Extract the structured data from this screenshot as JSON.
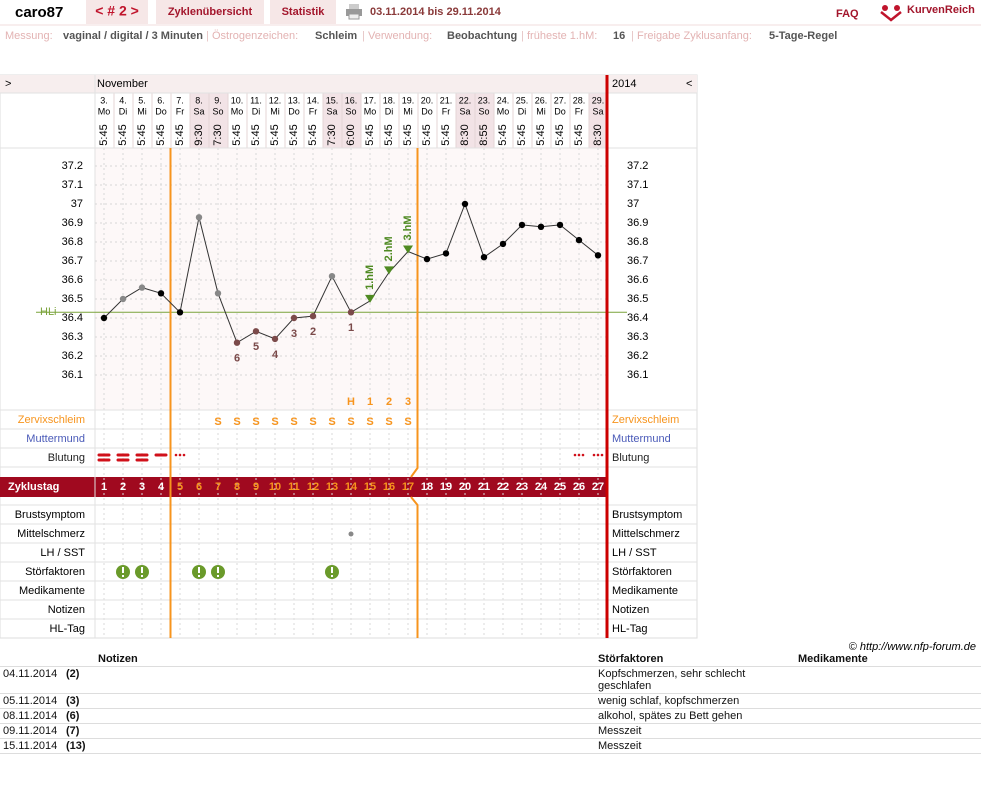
{
  "header": {
    "user": "caro87",
    "cycle_nav": "< # 2 >",
    "tabs": [
      "Zyklenübersicht",
      "Statistik"
    ],
    "period": "03.11.2014 bis 29.11.2014",
    "faq": "FAQ",
    "logo": "KurvenReich"
  },
  "info": [
    {
      "label": "Messung:",
      "value": "vaginal / digital / 3 Minuten"
    },
    {
      "label": "Östrogenzeichen:",
      "value": "Schleim"
    },
    {
      "label": "Verwendung:",
      "value": "Beobachtung"
    },
    {
      "label": "früheste 1.hM:",
      "value": "16"
    },
    {
      "label": "Freigabe Zyklusanfang:",
      "value": "5-Tage-Regel"
    }
  ],
  "chart_data": {
    "type": "line",
    "nav_left": ">",
    "nav_right": "<",
    "month": "November",
    "year": "2014",
    "dates": [
      "3.",
      "4.",
      "5.",
      "6.",
      "7.",
      "8.",
      "9.",
      "10.",
      "11.",
      "12.",
      "13.",
      "14.",
      "15.",
      "16.",
      "17.",
      "18.",
      "19.",
      "20.",
      "21.",
      "22.",
      "23.",
      "24.",
      "25.",
      "26.",
      "27.",
      "28.",
      "29."
    ],
    "weekdays": [
      "Mo",
      "Di",
      "Mi",
      "Do",
      "Fr",
      "Sa",
      "So",
      "Mo",
      "Di",
      "Mi",
      "Do",
      "Fr",
      "Sa",
      "So",
      "Mo",
      "Di",
      "Mi",
      "Do",
      "Fr",
      "Sa",
      "So",
      "Mo",
      "Di",
      "Mi",
      "Do",
      "Fr",
      "Sa"
    ],
    "times": [
      "5:45",
      "5:45",
      "5:45",
      "5:45",
      "5:45",
      "9:30",
      "7:30",
      "5:45",
      "5:45",
      "5:45",
      "5:45",
      "5:45",
      "7:30",
      "6:00",
      "5:45",
      "5:45",
      "5:45",
      "5:45",
      "5:45",
      "8:30",
      "8:55",
      "5:45",
      "5:45",
      "5:45",
      "5:45",
      "5:45",
      "8:30"
    ],
    "ylim": [
      35.95,
      37.3
    ],
    "yticks": [
      37.2,
      37.1,
      37,
      36.9,
      36.8,
      36.7,
      36.6,
      36.5,
      36.4,
      36.3,
      36.2,
      36.1
    ],
    "series": [
      {
        "name": "Temperatur",
        "color": "#333333",
        "values": [
          36.4,
          36.5,
          36.56,
          36.53,
          36.43,
          36.93,
          36.53,
          36.27,
          36.33,
          36.29,
          36.4,
          36.41,
          36.62,
          36.43,
          36.49,
          36.64,
          36.75,
          36.71,
          36.74,
          37.0,
          36.72,
          36.79,
          36.89,
          36.88,
          36.89,
          36.81,
          36.73
        ],
        "point_colors": [
          "#000000",
          "#888888",
          "#888888",
          "#000000",
          "#000000",
          "#888888",
          "#888888",
          "#7b4a4a",
          "#7b4a4a",
          "#7b4a4a",
          "#7b4a4a",
          "#7b4a4a",
          "#888888",
          "#7b4a4a",
          "#4f8a22",
          "#4f8a22",
          "#4f8a22",
          "#000000",
          "#000000",
          "#000000",
          "#000000",
          "#000000",
          "#000000",
          "#000000",
          "#000000",
          "#000000",
          "#000000"
        ]
      }
    ],
    "low_labels": [
      null,
      null,
      null,
      null,
      null,
      null,
      null,
      "6",
      "5",
      "4",
      "3",
      "2",
      null,
      "1",
      null,
      null,
      null,
      null,
      null,
      null,
      null,
      null,
      null,
      null,
      null,
      null,
      null
    ],
    "peak_labels": [
      null,
      null,
      null,
      null,
      null,
      null,
      null,
      null,
      null,
      null,
      null,
      null,
      null,
      null,
      "1.hM",
      "2.hM",
      "3.hM",
      null,
      null,
      null,
      null,
      null,
      null,
      null,
      null,
      null,
      null
    ],
    "coverline": {
      "value": 36.43,
      "label": "HLi",
      "color": "#7aa33a"
    },
    "peak_count": [
      null,
      null,
      null,
      null,
      null,
      null,
      null,
      null,
      null,
      null,
      null,
      null,
      null,
      "H",
      "1",
      "2",
      "3",
      null,
      null,
      null,
      null,
      null,
      null,
      null,
      null,
      null,
      null
    ],
    "zervix": [
      null,
      null,
      null,
      null,
      null,
      null,
      "S",
      "S",
      "S",
      "S",
      "S",
      "S",
      "S",
      "S",
      "S",
      "S",
      "S",
      null,
      null,
      null,
      null,
      null,
      null,
      null,
      null,
      null,
      null
    ],
    "bleeding": [
      3,
      3,
      3,
      2,
      1,
      null,
      null,
      null,
      null,
      null,
      null,
      null,
      null,
      null,
      null,
      null,
      null,
      null,
      null,
      null,
      null,
      null,
      null,
      null,
      null,
      1,
      1
    ],
    "upper_rows": [
      "Zervixschleim",
      "Muttermund",
      "Blutung"
    ],
    "upper_row_colors": [
      "#f7941d",
      "#4a5ab8",
      "#222222"
    ],
    "cycle_day_label": "Zyklustag",
    "cycle_days": [
      1,
      2,
      3,
      4,
      5,
      6,
      7,
      8,
      9,
      10,
      11,
      12,
      13,
      14,
      15,
      16,
      17,
      18,
      19,
      20,
      21,
      22,
      23,
      24,
      25,
      26,
      27
    ],
    "lower_rows": [
      "Brustsymptom",
      "Mittelschmerz",
      "LH / SST",
      "Störfaktoren",
      "Medikamente",
      "Notizen",
      "HL-Tag"
    ],
    "mittelschmerz": [
      null,
      null,
      null,
      null,
      null,
      null,
      null,
      null,
      null,
      null,
      null,
      null,
      null,
      true,
      null,
      null,
      null,
      null,
      null,
      null,
      null,
      null,
      null,
      null,
      null,
      null,
      null
    ],
    "stoerfaktoren": [
      null,
      true,
      true,
      null,
      null,
      true,
      true,
      null,
      null,
      null,
      null,
      null,
      true,
      null,
      null,
      null,
      null,
      null,
      null,
      null,
      null,
      null,
      null,
      null,
      null,
      null,
      null
    ]
  },
  "credit": "© http://www.nfp-forum.de",
  "table": {
    "columns": [
      "Notizen",
      "Störfaktoren",
      "Medikamente"
    ],
    "rows": [
      {
        "date": "04.11.2014",
        "day": "(2)",
        "stoerfaktoren": "Kopfschmerzen, sehr schlecht geschlafen"
      },
      {
        "date": "05.11.2014",
        "day": "(3)",
        "stoerfaktoren": "wenig schlaf, kopfschmerzen"
      },
      {
        "date": "08.11.2014",
        "day": "(6)",
        "stoerfaktoren": "alkohol, spätes zu Bett gehen"
      },
      {
        "date": "09.11.2014",
        "day": "(7)",
        "stoerfaktoren": "Messzeit"
      },
      {
        "date": "15.11.2014",
        "day": "(13)",
        "stoerfaktoren": "Messzeit"
      }
    ]
  }
}
